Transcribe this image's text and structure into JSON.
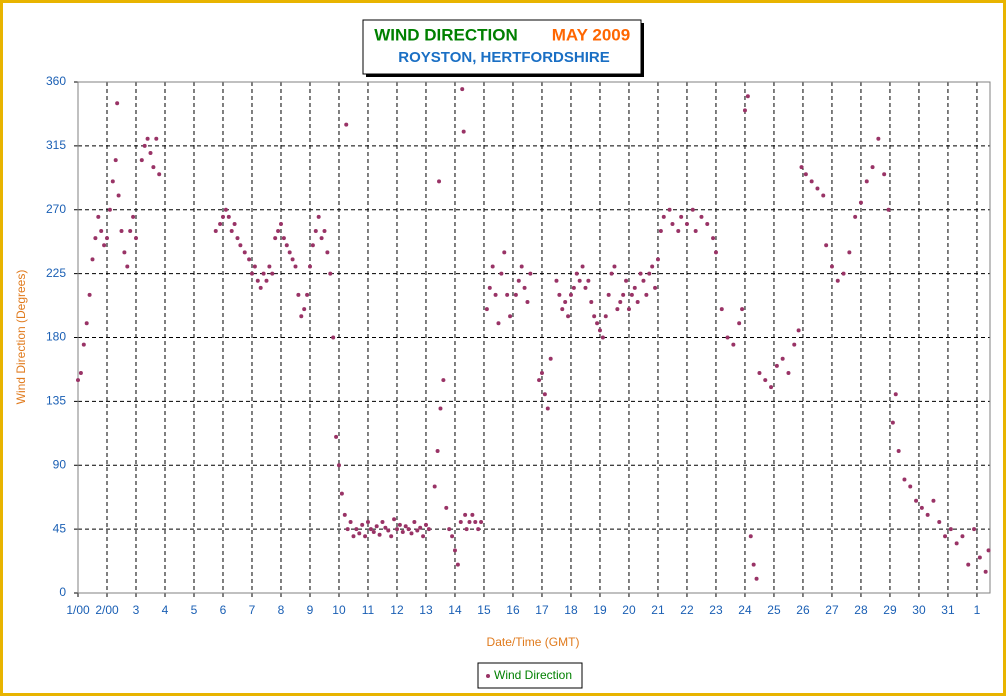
{
  "chart_data": {
    "type": "scatter",
    "title": "WIND DIRECTION",
    "title_date": "MAY 2009",
    "subtitle": "ROYSTON, HERTFORDSHIRE",
    "x_label": "Date/Time (GMT)",
    "y_label": "Wind Direction (Degrees)",
    "xlim": [
      0,
      31.45
    ],
    "ylim": [
      0,
      360
    ],
    "yticks": [
      0,
      45,
      90,
      135,
      180,
      225,
      270,
      315,
      360
    ],
    "xticks": [
      {
        "value": 0,
        "label": "1/00"
      },
      {
        "value": 1,
        "label": "2/00"
      },
      {
        "value": 2,
        "label": "3"
      },
      {
        "value": 3,
        "label": "4"
      },
      {
        "value": 4,
        "label": "5"
      },
      {
        "value": 5,
        "label": "6"
      },
      {
        "value": 6,
        "label": "7"
      },
      {
        "value": 7,
        "label": "8"
      },
      {
        "value": 8,
        "label": "9"
      },
      {
        "value": 9,
        "label": "10"
      },
      {
        "value": 10,
        "label": "11"
      },
      {
        "value": 11,
        "label": "12"
      },
      {
        "value": 12,
        "label": "13"
      },
      {
        "value": 13,
        "label": "14"
      },
      {
        "value": 14,
        "label": "15"
      },
      {
        "value": 15,
        "label": "16"
      },
      {
        "value": 16,
        "label": "17"
      },
      {
        "value": 17,
        "label": "18"
      },
      {
        "value": 18,
        "label": "19"
      },
      {
        "value": 19,
        "label": "20"
      },
      {
        "value": 20,
        "label": "21"
      },
      {
        "value": 21,
        "label": "22"
      },
      {
        "value": 22,
        "label": "23"
      },
      {
        "value": 23,
        "label": "24"
      },
      {
        "value": 24,
        "label": "25"
      },
      {
        "value": 25,
        "label": "26"
      },
      {
        "value": 26,
        "label": "27"
      },
      {
        "value": 27,
        "label": "28"
      },
      {
        "value": 28,
        "label": "29"
      },
      {
        "value": 29,
        "label": "30"
      },
      {
        "value": 30,
        "label": "31"
      },
      {
        "value": 31,
        "label": "1"
      }
    ],
    "grid": true,
    "legend": "bottom",
    "x": [
      0,
      0.1,
      0.2,
      0.3,
      0.4,
      0.5,
      0.6,
      0.7,
      0.8,
      0.9,
      1,
      1.1,
      1.2,
      1.3,
      1.35,
      1.4,
      1.5,
      1.6,
      1.7,
      1.8,
      1.9,
      2,
      2.2,
      2.3,
      2.4,
      2.5,
      2.6,
      2.7,
      2.8,
      4.75,
      4.9,
      5,
      5.1,
      5.2,
      5.3,
      5.4,
      5.5,
      5.6,
      5.75,
      5.9,
      6,
      6.1,
      6.2,
      6.3,
      6.4,
      6.5,
      6.6,
      6.7,
      6.8,
      6.9,
      7,
      7.1,
      7.2,
      7.3,
      7.4,
      7.5,
      7.6,
      7.7,
      7.8,
      7.9,
      8,
      8.1,
      8.2,
      8.3,
      8.4,
      8.5,
      8.6,
      8.7,
      8.8,
      8.9,
      9,
      9.1,
      9.2,
      9.25,
      9.3,
      9.4,
      9.5,
      9.6,
      9.7,
      9.8,
      9.9,
      10,
      10.1,
      10.2,
      10.3,
      10.4,
      10.5,
      10.6,
      10.7,
      10.8,
      10.9,
      11,
      11.1,
      11.2,
      11.3,
      11.4,
      11.5,
      11.6,
      11.7,
      11.8,
      11.9,
      12,
      12.1,
      12.3,
      12.4,
      12.45,
      12.5,
      12.6,
      12.7,
      12.8,
      12.9,
      13,
      13.1,
      13.2,
      13.25,
      13.3,
      13.35,
      13.4,
      13.5,
      13.6,
      13.7,
      13.8,
      13.9,
      14.1,
      14.2,
      14.3,
      14.4,
      14.5,
      14.6,
      14.7,
      14.8,
      14.9,
      15.1,
      15.2,
      15.3,
      15.4,
      15.5,
      15.6,
      15.9,
      16,
      16.1,
      16.2,
      16.3,
      16.5,
      16.6,
      16.7,
      16.8,
      16.9,
      17,
      17.1,
      17.2,
      17.3,
      17.4,
      17.5,
      17.6,
      17.7,
      17.8,
      17.9,
      18,
      18.1,
      18.2,
      18.3,
      18.4,
      18.5,
      18.6,
      18.7,
      18.8,
      18.9,
      19,
      19.1,
      19.2,
      19.3,
      19.4,
      19.5,
      19.6,
      19.7,
      19.8,
      19.9,
      20,
      20.1,
      20.2,
      20.4,
      20.5,
      20.7,
      20.8,
      21,
      21.2,
      21.3,
      21.5,
      21.7,
      21.9,
      22,
      22.2,
      22.4,
      22.6,
      22.8,
      22.9,
      23,
      23.1,
      23.2,
      23.3,
      23.4,
      23.5,
      23.7,
      23.9,
      24.1,
      24.3,
      24.5,
      24.7,
      24.85,
      24.95,
      25.1,
      25.3,
      25.5,
      25.7,
      25.8,
      26,
      26.2,
      26.4,
      26.6,
      26.8,
      27,
      27.2,
      27.4,
      27.6,
      27.8,
      27.95,
      28.1,
      28.2,
      28.3,
      28.5,
      28.7,
      28.9,
      29.1,
      29.3,
      29.5,
      29.7,
      29.9,
      30.1,
      30.3,
      30.5,
      30.7,
      30.9,
      31.1,
      31.3,
      31.4
    ],
    "series": [
      {
        "name": "Wind Direction",
        "color": "#993366",
        "values": [
          150,
          155,
          175,
          190,
          210,
          235,
          250,
          265,
          255,
          245,
          250,
          270,
          290,
          305,
          345,
          280,
          255,
          240,
          230,
          255,
          265,
          250,
          305,
          315,
          320,
          310,
          300,
          320,
          295,
          255,
          260,
          265,
          270,
          265,
          255,
          260,
          250,
          245,
          240,
          235,
          225,
          230,
          220,
          215,
          225,
          220,
          230,
          225,
          250,
          255,
          260,
          250,
          245,
          240,
          235,
          230,
          210,
          195,
          200,
          210,
          230,
          245,
          255,
          265,
          250,
          255,
          240,
          225,
          180,
          110,
          90,
          70,
          55,
          330,
          45,
          50,
          40,
          45,
          42,
          48,
          40,
          50,
          45,
          43,
          47,
          41,
          50,
          46,
          44,
          40,
          52,
          45,
          48,
          43,
          47,
          45,
          42,
          50,
          44,
          46,
          40,
          48,
          45,
          75,
          100,
          290,
          130,
          150,
          60,
          45,
          40,
          30,
          20,
          50,
          355,
          325,
          55,
          45,
          50,
          55,
          50,
          45,
          50,
          200,
          215,
          230,
          210,
          190,
          225,
          240,
          210,
          195,
          210,
          220,
          230,
          215,
          205,
          225,
          150,
          155,
          140,
          130,
          165,
          220,
          210,
          200,
          205,
          195,
          210,
          215,
          225,
          220,
          230,
          215,
          220,
          205,
          195,
          190,
          185,
          180,
          195,
          210,
          225,
          230,
          200,
          205,
          210,
          220,
          200,
          210,
          215,
          205,
          225,
          220,
          210,
          225,
          230,
          215,
          235,
          255,
          265,
          270,
          260,
          255,
          265,
          260,
          270,
          255,
          265,
          260,
          250,
          240,
          200,
          180,
          175,
          190,
          200,
          340,
          350,
          40,
          20,
          10,
          155,
          150,
          145,
          160,
          165,
          155,
          175,
          185,
          300,
          295,
          290,
          285,
          280,
          245,
          230,
          220,
          225,
          240,
          265,
          275,
          290,
          300,
          320,
          295,
          270,
          120,
          140,
          100,
          80,
          75,
          65,
          60,
          55,
          65,
          50,
          40,
          45,
          35,
          40,
          20,
          45,
          25,
          15,
          30
        ]
      }
    ]
  }
}
